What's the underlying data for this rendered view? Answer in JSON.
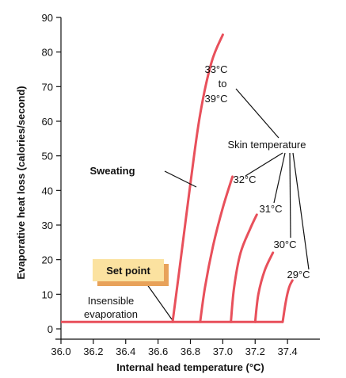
{
  "chart_data": {
    "type": "line",
    "title": "",
    "xlabel": "Internal head temperature (°C)",
    "ylabel": "Evaporative heat loss (calories/second)",
    "xlim": [
      36.0,
      37.6
    ],
    "ylim": [
      0,
      90
    ],
    "xticks": [
      "36.0",
      "36.2",
      "36.4",
      "36.6",
      "36.8",
      "37.0",
      "37.2",
      "37.4"
    ],
    "yticks": [
      "0",
      "10",
      "20",
      "30",
      "40",
      "50",
      "60",
      "70",
      "80",
      "90"
    ],
    "grid": false,
    "color": "#e8505b",
    "baseline": {
      "y": 2,
      "x": [
        36.0,
        37.37
      ]
    },
    "series": [
      {
        "label": [
          "33°C",
          "to",
          "39°C"
        ],
        "points": [
          [
            36.69,
            2
          ],
          [
            36.74,
            20
          ],
          [
            36.8,
            42
          ],
          [
            36.86,
            62
          ],
          [
            36.93,
            77
          ],
          [
            37.0,
            85
          ]
        ]
      },
      {
        "label": [
          "32°C"
        ],
        "points": [
          [
            36.86,
            2
          ],
          [
            36.89,
            12
          ],
          [
            36.94,
            24
          ],
          [
            37.0,
            35
          ],
          [
            37.06,
            44
          ]
        ]
      },
      {
        "label": [
          "31°C"
        ],
        "points": [
          [
            37.05,
            2
          ],
          [
            37.07,
            12
          ],
          [
            37.11,
            22
          ],
          [
            37.17,
            29
          ],
          [
            37.21,
            33
          ]
        ]
      },
      {
        "label": [
          "30°C"
        ],
        "points": [
          [
            37.2,
            2
          ],
          [
            37.22,
            10
          ],
          [
            37.26,
            17
          ],
          [
            37.31,
            22
          ]
        ]
      },
      {
        "label": [
          "29°C"
        ],
        "points": [
          [
            37.37,
            2
          ],
          [
            37.39,
            8
          ],
          [
            37.41,
            12
          ],
          [
            37.43,
            14
          ]
        ]
      }
    ],
    "annotations": {
      "sweating": "Sweating",
      "skin_temperature": "Skin temperature",
      "set_point": "Set point",
      "insensible_line1": "Insensible",
      "insensible_line2": "evaporation"
    }
  }
}
